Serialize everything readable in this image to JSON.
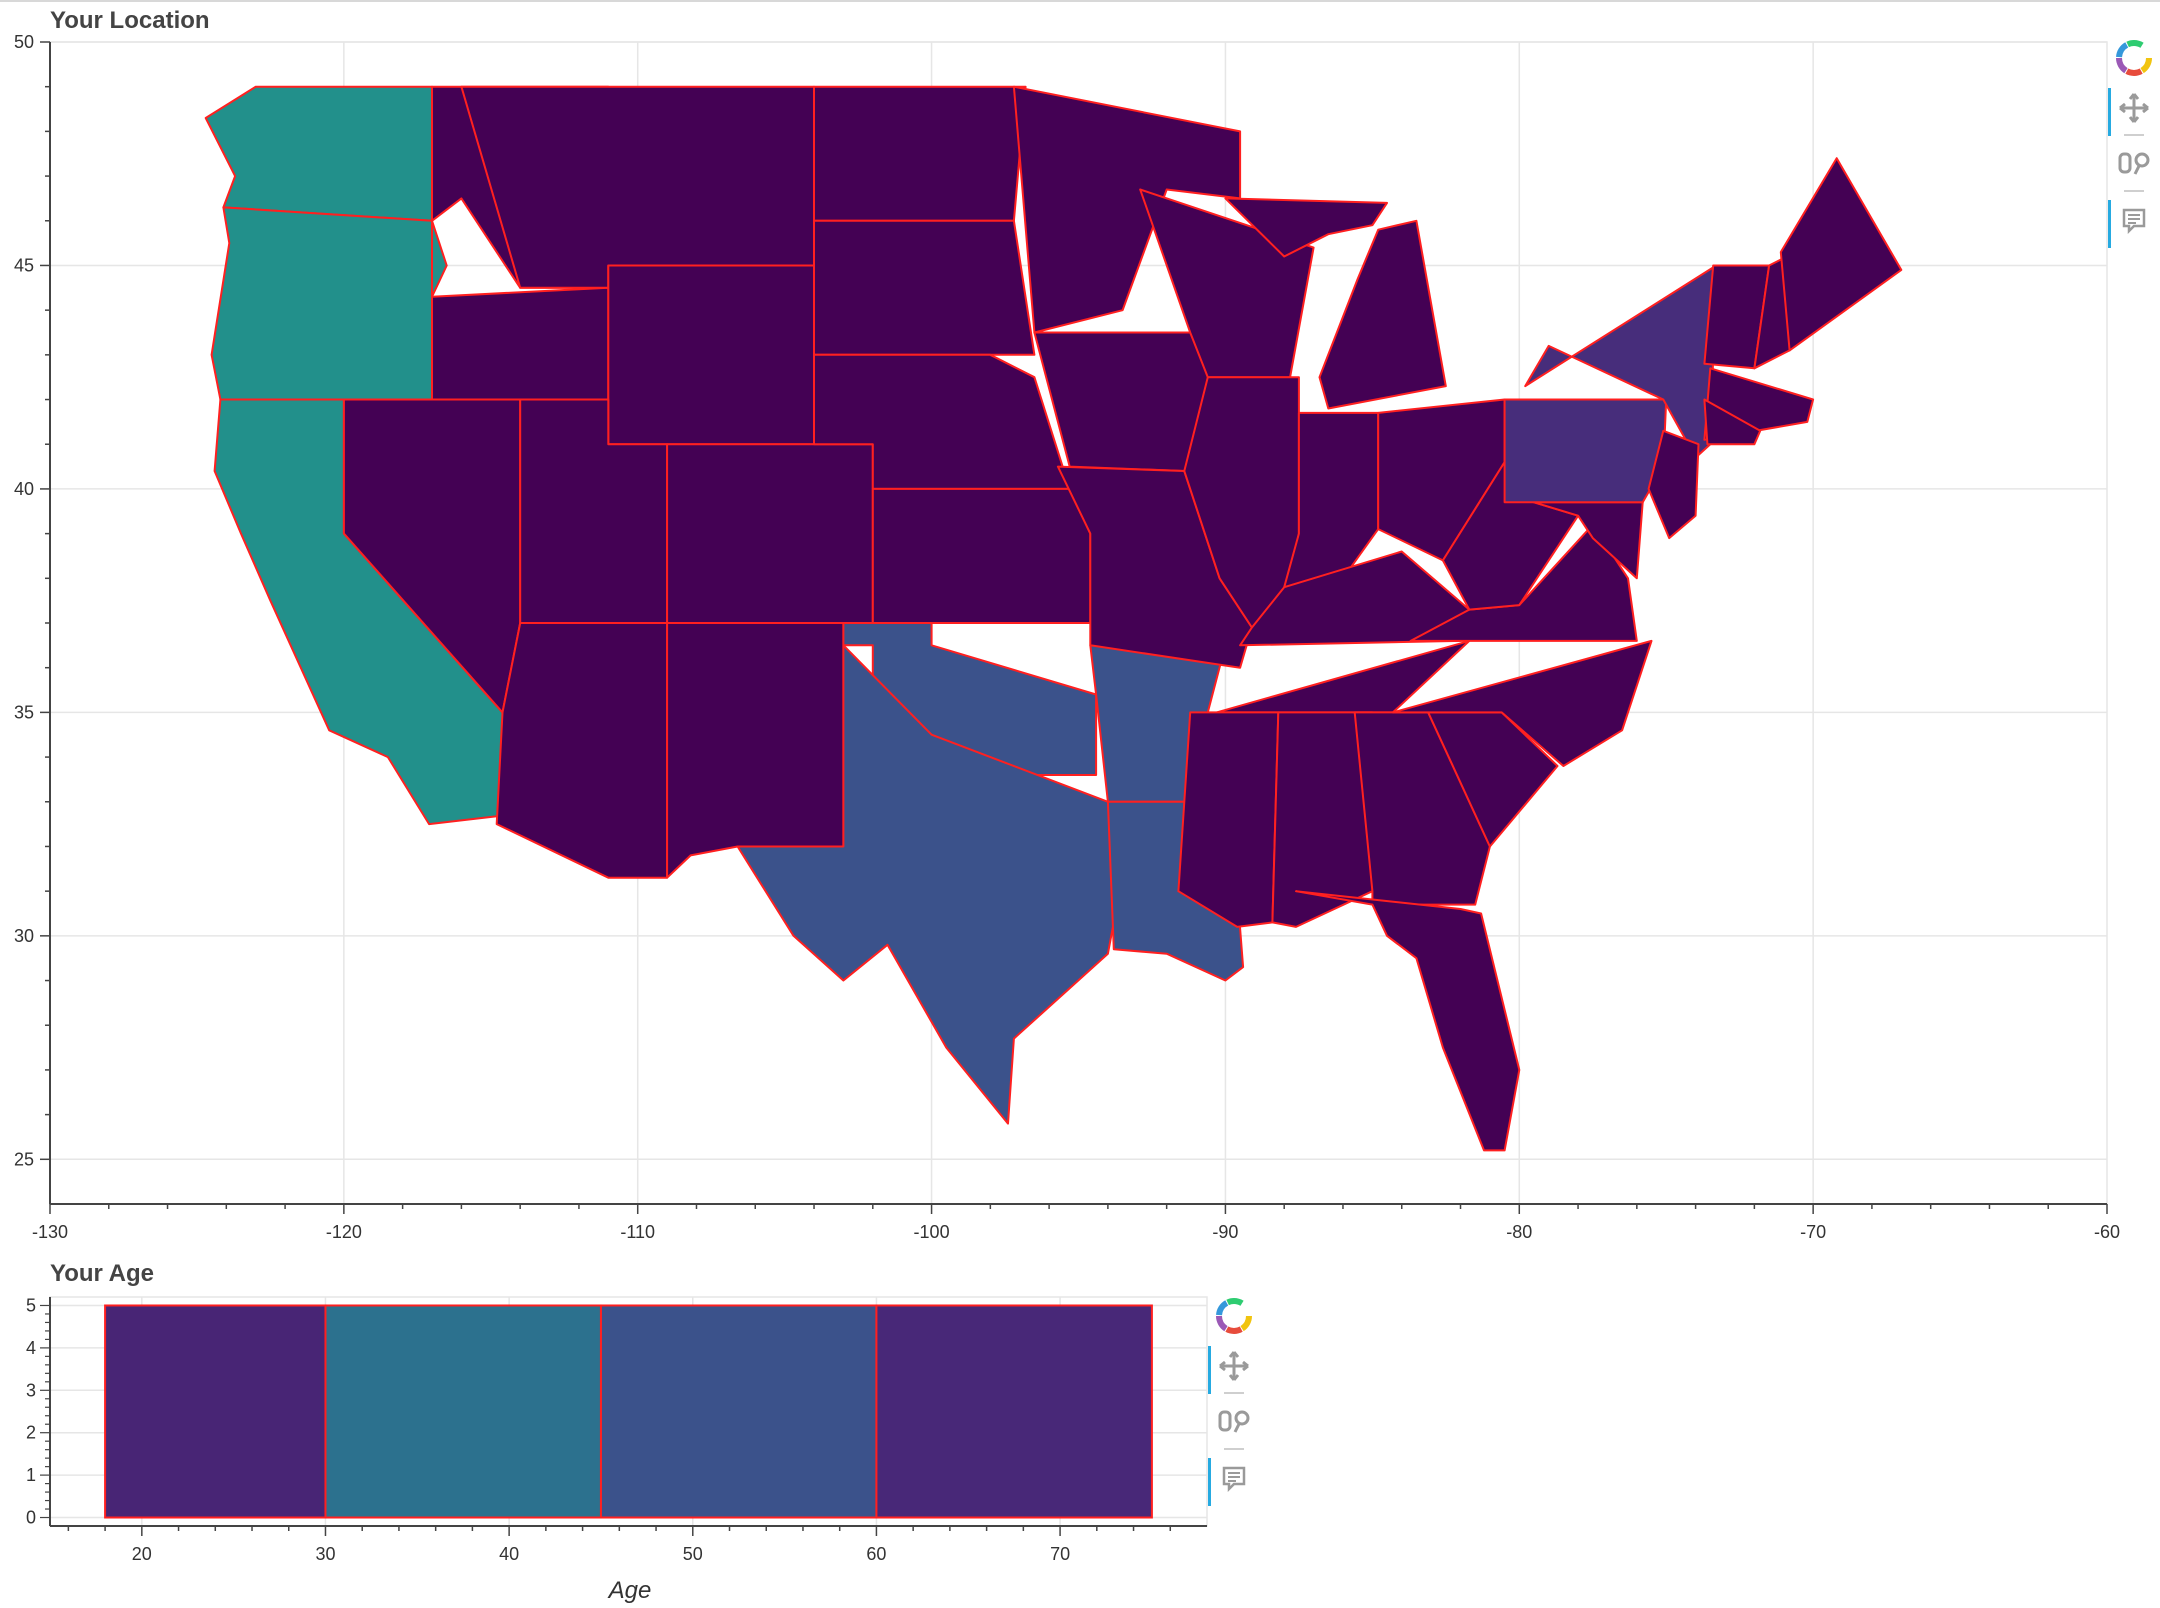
{
  "map_plot": {
    "title": "Your Location"
  },
  "age_plot": {
    "title": "Your Age",
    "xlabel": "Age"
  },
  "colors": {
    "border": "#ff2020",
    "grid": "#e6e6e6",
    "axis": "#444444"
  },
  "toolbar": {
    "icons": [
      "bokeh-logo-icon",
      "pan-icon",
      "wheel-zoom-icon",
      "hover-icon"
    ]
  },
  "chart_data": [
    {
      "type": "map",
      "title": "Your Location",
      "xlim": [
        -130,
        -60
      ],
      "ylim": [
        24,
        50
      ],
      "x_ticks": [
        -130,
        -120,
        -110,
        -100,
        -90,
        -80,
        -70,
        -60
      ],
      "y_ticks": [
        25,
        30,
        35,
        40,
        45,
        50
      ],
      "grid": true,
      "regions": [
        {
          "lon": [
            -124.7,
            -123.0,
            -117.0,
            -117.0,
            -124.1,
            -123.7,
            -124.7
          ],
          "lat": [
            48.3,
            49.0,
            49.0,
            46.0,
            46.3,
            47.0,
            48.3
          ],
          "color": "#22908b"
        },
        {
          "lon": [
            -124.1,
            -117.0,
            -116.5,
            -117.0,
            -117.0,
            -124.2,
            -124.5,
            -123.9
          ],
          "lat": [
            46.3,
            46.0,
            45.0,
            44.3,
            42.0,
            42.0,
            43.0,
            45.5
          ],
          "color": "#22908b"
        },
        {
          "lon": [
            -124.2,
            -120.0,
            -120.0,
            -114.6,
            -114.5,
            -117.1,
            -118.5,
            -120.5,
            -122.5,
            -123.5,
            -124.4
          ],
          "lat": [
            42.0,
            42.0,
            39.0,
            35.0,
            32.7,
            32.5,
            34.0,
            34.6,
            37.5,
            39.0,
            40.4
          ],
          "color": "#22908b"
        },
        {
          "lon": [
            -117.0,
            -111.0,
            -111.0,
            -114.0,
            -116.0,
            -117.0,
            -117.0
          ],
          "lat": [
            49.0,
            49.0,
            44.5,
            44.5,
            46.5,
            46.0,
            42.0
          ],
          "color": "#440154"
        },
        {
          "lon": [
            -117.0,
            -111.0,
            -111.0,
            -117.0
          ],
          "lat": [
            44.3,
            44.5,
            42.0,
            42.0
          ],
          "color": "#440154"
        },
        {
          "lon": [
            -116.0,
            -104.0,
            -104.0,
            -111.0,
            -111.0,
            -114.0
          ],
          "lat": [
            49.0,
            49.0,
            45.0,
            45.0,
            44.5,
            44.5
          ],
          "color": "#440154"
        },
        {
          "lon": [
            -111.0,
            -104.0,
            -104.0,
            -111.0
          ],
          "lat": [
            45.0,
            45.0,
            41.0,
            41.0
          ],
          "color": "#440154"
        },
        {
          "lon": [
            -120.0,
            -114.0,
            -114.0,
            -114.6,
            -120.0
          ],
          "lat": [
            42.0,
            42.0,
            37.0,
            35.0,
            39.0
          ],
          "color": "#440154"
        },
        {
          "lon": [
            -114.0,
            -111.0,
            -111.0,
            -109.0,
            -109.0,
            -114.0
          ],
          "lat": [
            42.0,
            42.0,
            41.0,
            41.0,
            37.0,
            37.0
          ],
          "color": "#440154"
        },
        {
          "lon": [
            -109.0,
            -102.0,
            -102.0,
            -109.0
          ],
          "lat": [
            41.0,
            41.0,
            37.0,
            37.0
          ],
          "color": "#440154"
        },
        {
          "lon": [
            -114.0,
            -109.0,
            -109.0,
            -111.0,
            -114.8,
            -114.6
          ],
          "lat": [
            37.0,
            37.0,
            31.3,
            31.3,
            32.5,
            35.0
          ],
          "color": "#440154"
        },
        {
          "lon": [
            -109.0,
            -103.0,
            -103.0,
            -106.6,
            -108.2,
            -109.0
          ],
          "lat": [
            37.0,
            37.0,
            32.0,
            32.0,
            31.8,
            31.3
          ],
          "color": "#440154"
        },
        {
          "lon": [
            -104.0,
            -96.8,
            -97.2,
            -104.0
          ],
          "lat": [
            49.0,
            49.0,
            46.0,
            46.0
          ],
          "color": "#440154"
        },
        {
          "lon": [
            -104.0,
            -97.2,
            -96.5,
            -98.0,
            -104.0
          ],
          "lat": [
            46.0,
            46.0,
            43.0,
            43.0,
            43.0
          ],
          "color": "#440154"
        },
        {
          "lon": [
            -104.0,
            -98.0,
            -96.5,
            -95.3,
            -95.3,
            -102.0,
            -102.0,
            -104.0
          ],
          "lat": [
            43.0,
            43.0,
            42.5,
            40.0,
            40.0,
            40.0,
            41.0,
            41.0
          ],
          "color": "#440154"
        },
        {
          "lon": [
            -102.0,
            -95.3,
            -94.6,
            -94.6,
            -102.0
          ],
          "lat": [
            40.0,
            40.0,
            39.0,
            37.0,
            37.0
          ],
          "color": "#440154"
        },
        {
          "lon": [
            -103.0,
            -100.0,
            -100.0,
            -94.4,
            -94.4,
            -102.0,
            -102.0,
            -103.0
          ],
          "lat": [
            37.0,
            37.0,
            36.5,
            35.4,
            33.6,
            33.6,
            36.5,
            36.5
          ],
          "color": "#3b528b"
        },
        {
          "lon": [
            -106.6,
            -103.0,
            -103.0,
            -100.0,
            -94.0,
            -93.6,
            -94.0,
            -97.2,
            -97.4,
            -99.5,
            -101.5,
            -103.0,
            -104.7
          ],
          "lat": [
            32.0,
            32.0,
            36.5,
            34.5,
            33.0,
            31.0,
            29.6,
            27.7,
            25.8,
            27.5,
            29.8,
            29.0,
            30.0
          ],
          "color": "#3b528b"
        },
        {
          "lon": [
            -94.6,
            -90.0,
            -91.2,
            -91.0,
            -94.0,
            -94.4
          ],
          "lat": [
            36.5,
            36.5,
            33.5,
            33.0,
            33.0,
            35.4
          ],
          "color": "#3b528b"
        },
        {
          "lon": [
            -94.0,
            -91.0,
            -91.6,
            -89.6,
            -89.4,
            -90.0,
            -92.0,
            -93.8
          ],
          "lat": [
            33.0,
            33.0,
            31.0,
            31.0,
            29.3,
            29.0,
            29.6,
            29.7
          ],
          "color": "#3b528b"
        },
        {
          "lon": [
            -97.2,
            -89.5,
            -89.5,
            -92.0,
            -93.5,
            -96.5
          ],
          "lat": [
            49.0,
            48.0,
            46.5,
            46.7,
            44.0,
            43.5
          ],
          "color": "#440154"
        },
        {
          "lon": [
            -96.5,
            -91.2,
            -90.2,
            -91.4,
            -95.3
          ],
          "lat": [
            43.5,
            43.5,
            42.0,
            40.4,
            40.5
          ],
          "color": "#440154"
        },
        {
          "lon": [
            -95.7,
            -91.4,
            -90.2,
            -89.1,
            -89.5,
            -94.6,
            -94.6
          ],
          "lat": [
            40.5,
            40.4,
            38.0,
            36.9,
            36.0,
            36.5,
            39.0
          ],
          "color": "#440154"
        },
        {
          "lon": [
            -92.9,
            -87.0,
            -87.8,
            -90.6,
            -91.2
          ],
          "lat": [
            46.7,
            45.4,
            42.5,
            42.5,
            43.5
          ],
          "color": "#440154"
        },
        {
          "lon": [
            -90.6,
            -87.5,
            -87.5,
            -88.0,
            -89.1,
            -90.2,
            -91.4
          ],
          "lat": [
            42.5,
            42.5,
            39.0,
            37.5,
            36.9,
            38.0,
            40.4
          ],
          "color": "#440154"
        },
        {
          "lon": [
            -87.5,
            -84.8,
            -84.8,
            -86.0,
            -88.0,
            -87.5
          ],
          "lat": [
            41.7,
            41.7,
            39.1,
            38.0,
            37.8,
            39.0
          ],
          "color": "#440154"
        },
        {
          "lon": [
            -84.8,
            -80.5,
            -80.5,
            -82.6,
            -84.8
          ],
          "lat": [
            41.7,
            42.0,
            40.6,
            38.4,
            39.1
          ],
          "color": "#440154"
        },
        {
          "lon": [
            -86.5,
            -82.5,
            -83.5,
            -84.8,
            -85.5,
            -86.8
          ],
          "lat": [
            41.8,
            42.3,
            46.0,
            45.8,
            44.7,
            42.5
          ],
          "color": "#440154"
        },
        {
          "lon": [
            -90.0,
            -84.5,
            -85.0,
            -86.5,
            -88.0
          ],
          "lat": [
            46.5,
            46.4,
            45.9,
            45.7,
            45.2
          ],
          "color": "#440154"
        },
        {
          "lon": [
            -89.5,
            -82.0,
            -81.7,
            -84.0,
            -88.0,
            -89.1
          ],
          "lat": [
            36.5,
            36.6,
            37.3,
            38.6,
            37.8,
            36.9
          ],
          "color": "#440154"
        },
        {
          "lon": [
            -90.3,
            -81.7,
            -84.3,
            -88.2,
            -90.3
          ],
          "lat": [
            35.0,
            36.6,
            35.0,
            35.0,
            35.0
          ],
          "color": "#440154"
        },
        {
          "lon": [
            -91.2,
            -88.2,
            -88.4,
            -89.6,
            -91.6
          ],
          "lat": [
            35.0,
            35.0,
            30.3,
            30.2,
            31.0
          ],
          "color": "#440154"
        },
        {
          "lon": [
            -88.2,
            -85.0,
            -85.0,
            -87.6,
            -88.4
          ],
          "lat": [
            35.0,
            35.0,
            31.0,
            30.2,
            30.3
          ],
          "color": "#440154"
        },
        {
          "lon": [
            -85.6,
            -83.1,
            -81.0,
            -81.5,
            -85.0,
            -85.0
          ],
          "lat": [
            35.0,
            35.0,
            32.0,
            30.7,
            30.7,
            31.0
          ],
          "color": "#440154"
        },
        {
          "lon": [
            -87.6,
            -82.0,
            -81.3,
            -80.0,
            -80.5,
            -81.2,
            -82.6,
            -83.5,
            -84.5,
            -85.0
          ],
          "lat": [
            31.0,
            30.6,
            30.5,
            27.0,
            25.2,
            25.2,
            27.5,
            29.5,
            30.0,
            30.7
          ],
          "color": "#440154"
        },
        {
          "lon": [
            -83.1,
            -80.6,
            -78.7,
            -81.0
          ],
          "lat": [
            35.0,
            35.0,
            33.8,
            32.0
          ],
          "color": "#440154"
        },
        {
          "lon": [
            -84.3,
            -75.5,
            -76.5,
            -78.5,
            -80.6
          ],
          "lat": [
            35.0,
            36.6,
            34.6,
            33.8,
            35.0
          ],
          "color": "#440154"
        },
        {
          "lon": [
            -83.7,
            -76.0,
            -76.3,
            -77.5,
            -80.0,
            -81.7
          ],
          "lat": [
            36.6,
            36.6,
            38.0,
            39.2,
            37.4,
            37.3
          ],
          "color": "#440154"
        },
        {
          "lon": [
            -82.6,
            -80.5,
            -79.5,
            -78.0,
            -80.0,
            -81.7
          ],
          "lat": [
            38.4,
            40.6,
            39.7,
            39.4,
            37.4,
            37.3
          ],
          "color": "#440154"
        },
        {
          "lon": [
            -79.5,
            -75.8,
            -76.0,
            -77.5,
            -78.0
          ],
          "lat": [
            39.7,
            39.7,
            38.0,
            38.9,
            39.4
          ],
          "color": "#440154"
        },
        {
          "lon": [
            -80.5,
            -75.0,
            -75.1,
            -75.8,
            -80.5
          ],
          "lat": [
            42.0,
            42.0,
            40.5,
            39.7,
            39.7
          ],
          "color": "#472d7b"
        },
        {
          "lon": [
            -79.8,
            -73.3,
            -73.5,
            -74.0,
            -75.1,
            -79.0
          ],
          "lat": [
            42.3,
            45.0,
            41.0,
            40.7,
            42.0,
            43.2
          ],
          "color": "#472d7b"
        },
        {
          "lon": [
            -75.1,
            -73.9,
            -74.0,
            -74.9,
            -75.6
          ],
          "lat": [
            41.3,
            41.0,
            39.4,
            38.9,
            40.0
          ],
          "color": "#440154"
        },
        {
          "lon": [
            -73.4,
            -71.5,
            -72.0,
            -73.7
          ],
          "lat": [
            45.0,
            45.0,
            42.7,
            42.8
          ],
          "color": "#440154"
        },
        {
          "lon": [
            -71.5,
            -70.6,
            -70.8,
            -72.0
          ],
          "lat": [
            45.0,
            45.3,
            43.1,
            42.7
          ],
          "color": "#440154"
        },
        {
          "lon": [
            -71.1,
            -69.2,
            -67.0,
            -70.8
          ],
          "lat": [
            45.3,
            47.4,
            44.9,
            43.1
          ],
          "color": "#440154"
        },
        {
          "lon": [
            -73.5,
            -70.0,
            -70.2,
            -73.7
          ],
          "lat": [
            42.7,
            42.0,
            41.5,
            41.1
          ],
          "color": "#440154"
        },
        {
          "lon": [
            -73.7,
            -71.8,
            -72.0,
            -73.6
          ],
          "lat": [
            42.0,
            41.3,
            41.0,
            41.0
          ],
          "color": "#440154"
        }
      ]
    },
    {
      "type": "bar",
      "title": "Your Age",
      "xlabel": "Age",
      "ylabel": "",
      "xlim": [
        15,
        78
      ],
      "ylim": [
        -0.2,
        5.2
      ],
      "x_ticks": [
        20,
        30,
        40,
        50,
        60,
        70
      ],
      "y_ticks": [
        0,
        1,
        2,
        3,
        4,
        5
      ],
      "bins": [
        {
          "left": 18,
          "right": 30,
          "top": 5,
          "color": "#482575"
        },
        {
          "left": 30,
          "right": 45,
          "top": 5,
          "color": "#2c718e"
        },
        {
          "left": 45,
          "right": 60,
          "top": 5,
          "color": "#3b528b"
        },
        {
          "left": 60,
          "right": 75,
          "top": 5,
          "color": "#482878"
        }
      ]
    }
  ]
}
